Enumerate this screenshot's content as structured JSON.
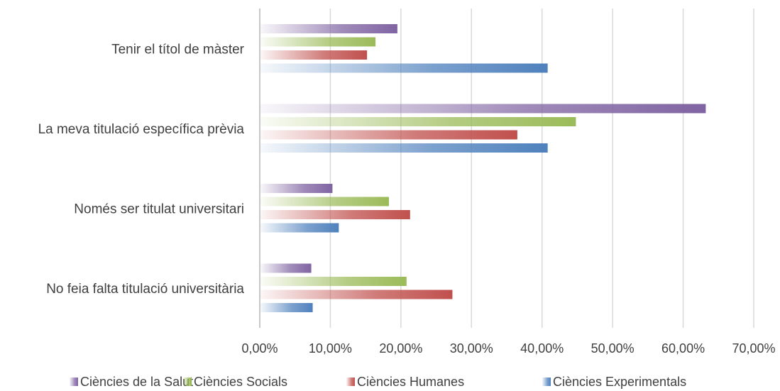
{
  "chart_data": {
    "type": "bar",
    "orientation": "horizontal",
    "categories": [
      "Tenir el títol de màster",
      "La meva titulació específica prèvia",
      "Només ser titulat universitari",
      "No feia falta titulació universitària"
    ],
    "series": [
      {
        "name": "Ciències de la Salut",
        "color": "#8064a2",
        "values": [
          19.5,
          63.2,
          10.3,
          7.3
        ]
      },
      {
        "name": "Ciències Socials",
        "color": "#9bbb59",
        "values": [
          16.4,
          44.8,
          18.3,
          20.8
        ]
      },
      {
        "name": "Ciències Humanes",
        "color": "#c0504d",
        "values": [
          15.2,
          36.5,
          21.3,
          27.3
        ]
      },
      {
        "name": "Ciències Experimentals",
        "color": "#4f81bd",
        "values": [
          40.8,
          40.8,
          11.2,
          7.5
        ]
      }
    ],
    "xlim": [
      0,
      70
    ],
    "xticks": [
      "0,00%",
      "10,00%",
      "20,00%",
      "30,00%",
      "40,00%",
      "50,00%",
      "60,00%",
      "70,00%"
    ],
    "grid": true,
    "legend": "bottom",
    "title": "",
    "xlabel": "",
    "ylabel": ""
  }
}
